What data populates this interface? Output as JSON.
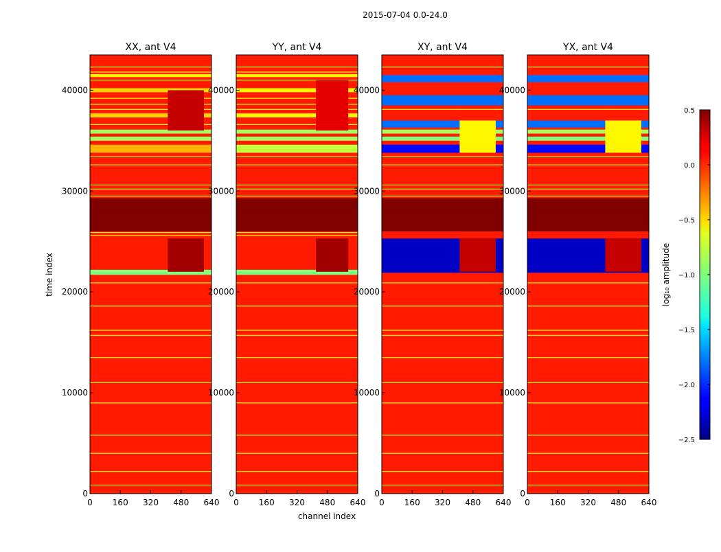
{
  "figure": {
    "suptitle": "2015-07-04 0.0-24.0"
  },
  "chart_data": {
    "type": "heatmap",
    "xlabel": "channel index",
    "ylabel": "time index",
    "xlim": [
      0,
      640
    ],
    "ylim": [
      0,
      43500
    ],
    "xticks": [
      0,
      160,
      320,
      480,
      640
    ],
    "yticks": [
      0,
      10000,
      20000,
      30000,
      40000
    ],
    "colorbar": {
      "label": "log₁₀ amplitude",
      "range": [
        -2.5,
        0.5
      ],
      "ticks": [
        0.5,
        0.0,
        -0.5,
        -1.0,
        -1.5,
        -2.0,
        -2.5
      ],
      "tick_labels": [
        "0.5",
        "0.0",
        "−0.5",
        "−1.0",
        "−1.5",
        "−2.0",
        "−2.5"
      ],
      "colormap": "jet"
    },
    "baseline_value": 0.05,
    "panels": [
      {
        "title": "XX, ant V4",
        "row_bands": [
          {
            "t0": 26000,
            "t1": 29300,
            "value": 0.5
          },
          {
            "t0": 21700,
            "t1": 22200,
            "value": -1.0
          },
          {
            "t0": 33800,
            "t1": 34600,
            "value": -0.4
          },
          {
            "t0": 35000,
            "t1": 35400,
            "value": -0.9
          },
          {
            "t0": 35700,
            "t1": 36100,
            "value": -0.9
          },
          {
            "t0": 37300,
            "t1": 37700,
            "value": -0.5
          },
          {
            "t0": 39800,
            "t1": 40200,
            "value": -0.5
          },
          {
            "t0": 41300,
            "t1": 41600,
            "value": -0.6
          }
        ],
        "patches": [
          {
            "t0": 22000,
            "t1": 25300,
            "c0": 410,
            "c1": 600,
            "value": 0.4
          },
          {
            "t0": 36000,
            "t1": 40000,
            "c0": 410,
            "c1": 600,
            "value": 0.3
          }
        ],
        "lines": [
          850,
          2200,
          4000,
          5800,
          9000,
          11000,
          13500,
          15700,
          16200,
          18600,
          20900,
          25600,
          25900,
          29500,
          30200,
          30600,
          32600,
          33400,
          36600,
          38100,
          38600,
          39200,
          41000,
          41800,
          42300
        ]
      },
      {
        "title": "YY, ant V4",
        "row_bands": [
          {
            "t0": 26000,
            "t1": 29300,
            "value": 0.5
          },
          {
            "t0": 21700,
            "t1": 22200,
            "value": -1.0
          },
          {
            "t0": 33800,
            "t1": 34600,
            "value": -0.8
          },
          {
            "t0": 35000,
            "t1": 35400,
            "value": -0.9
          },
          {
            "t0": 35700,
            "t1": 36100,
            "value": -0.9
          },
          {
            "t0": 37300,
            "t1": 37700,
            "value": -0.6
          },
          {
            "t0": 39800,
            "t1": 40200,
            "value": -0.6
          },
          {
            "t0": 41300,
            "t1": 41600,
            "value": -0.6
          }
        ],
        "patches": [
          {
            "t0": 22000,
            "t1": 25300,
            "c0": 420,
            "c1": 590,
            "value": 0.4
          },
          {
            "t0": 36000,
            "t1": 41000,
            "c0": 420,
            "c1": 590,
            "value": 0.2
          }
        ],
        "lines": [
          850,
          2200,
          4000,
          5800,
          9000,
          11000,
          13500,
          15700,
          16200,
          18600,
          20900,
          25600,
          25900,
          29500,
          30200,
          30600,
          32600,
          33400,
          36600,
          38100,
          38600,
          39200,
          41000,
          41800,
          42300
        ]
      },
      {
        "title": "XY, ant V4",
        "row_bands": [
          {
            "t0": 26000,
            "t1": 29300,
            "value": 0.5
          },
          {
            "t0": 21900,
            "t1": 25300,
            "value": -2.3
          },
          {
            "t0": 33800,
            "t1": 34600,
            "value": -2.1
          },
          {
            "t0": 35000,
            "t1": 35400,
            "value": -1.0
          },
          {
            "t0": 35700,
            "t1": 36100,
            "value": -0.9
          },
          {
            "t0": 36300,
            "t1": 37000,
            "value": -1.8
          },
          {
            "t0": 38500,
            "t1": 39500,
            "value": -1.8
          },
          {
            "t0": 40800,
            "t1": 41500,
            "value": -1.8
          }
        ],
        "patches": [
          {
            "t0": 22000,
            "t1": 25300,
            "c0": 410,
            "c1": 600,
            "value": 0.3
          },
          {
            "t0": 33800,
            "t1": 37000,
            "c0": 410,
            "c1": 600,
            "value": -0.6
          }
        ],
        "lines": [
          850,
          2200,
          4000,
          5800,
          9000,
          11000,
          13500,
          15700,
          16200,
          18600,
          20900,
          29500,
          30200,
          30600,
          32600,
          33400,
          38100,
          42300
        ]
      },
      {
        "title": "YX, ant V4",
        "row_bands": [
          {
            "t0": 26000,
            "t1": 29300,
            "value": 0.5
          },
          {
            "t0": 21900,
            "t1": 25300,
            "value": -2.3
          },
          {
            "t0": 33800,
            "t1": 34600,
            "value": -2.1
          },
          {
            "t0": 35000,
            "t1": 35400,
            "value": -1.0
          },
          {
            "t0": 35700,
            "t1": 36100,
            "value": -0.9
          },
          {
            "t0": 36300,
            "t1": 37000,
            "value": -1.8
          },
          {
            "t0": 38500,
            "t1": 39500,
            "value": -1.8
          },
          {
            "t0": 40800,
            "t1": 41500,
            "value": -1.8
          }
        ],
        "patches": [
          {
            "t0": 22000,
            "t1": 25300,
            "c0": 410,
            "c1": 600,
            "value": 0.3
          },
          {
            "t0": 33800,
            "t1": 37000,
            "c0": 410,
            "c1": 600,
            "value": -0.6
          }
        ],
        "lines": [
          850,
          2200,
          4000,
          5800,
          9000,
          11000,
          13500,
          15700,
          16200,
          18600,
          20900,
          29500,
          30200,
          30600,
          32600,
          33400,
          38100,
          42300
        ]
      }
    ]
  }
}
